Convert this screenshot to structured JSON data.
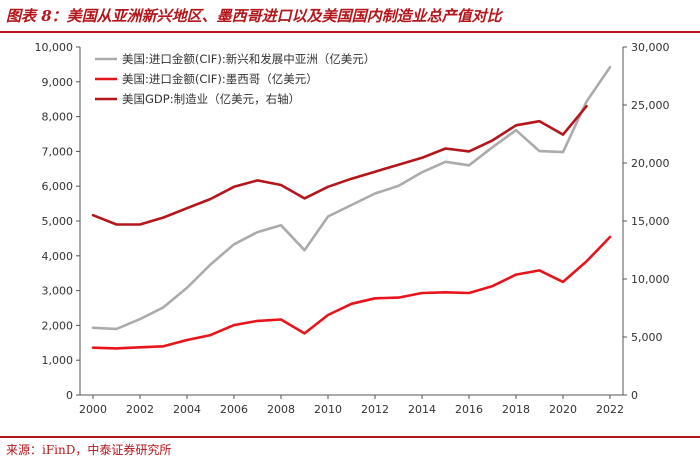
{
  "header": {
    "title": "图表 8：美国从亚洲新兴地区、墨西哥进口以及美国国内制造业总产值对比"
  },
  "footer": {
    "source": "来源：iFinD，中泰证券研究所"
  },
  "chart_data": {
    "type": "line",
    "title": "",
    "xlabel": "",
    "ylabel": "",
    "x": [
      2000,
      2001,
      2002,
      2003,
      2004,
      2005,
      2006,
      2007,
      2008,
      2009,
      2010,
      2011,
      2012,
      2013,
      2014,
      2015,
      2016,
      2017,
      2018,
      2019,
      2020,
      2021,
      2022
    ],
    "x_ticks": [
      "2000",
      "2002",
      "2004",
      "2006",
      "2008",
      "2010",
      "2012",
      "2014",
      "2016",
      "2018",
      "2020",
      "2022"
    ],
    "y_left": {
      "ylim": [
        0,
        10000
      ],
      "ticks": [
        "0",
        "1,000",
        "2,000",
        "3,000",
        "4,000",
        "5,000",
        "6,000",
        "7,000",
        "8,000",
        "9,000",
        "10,000"
      ]
    },
    "y_right": {
      "ylim": [
        0,
        30000
      ],
      "ticks": [
        "0",
        "5,000",
        "10,000",
        "15,000",
        "20,000",
        "25,000",
        "30,000"
      ]
    },
    "grid": false,
    "legend_position": "top-left",
    "series": [
      {
        "name": "美国:进口金额(CIF):新兴和发展中亚洲（亿美元）",
        "axis": "left",
        "color": "#ababab",
        "values": [
          1930,
          1900,
          2180,
          2520,
          3080,
          3750,
          4330,
          4680,
          4880,
          4160,
          5130,
          5460,
          5790,
          6010,
          6400,
          6700,
          6600,
          7120,
          7610,
          7010,
          6980,
          8430,
          9420
        ]
      },
      {
        "name": "美国:进口金额(CIF):墨西哥（亿美元）",
        "axis": "left",
        "color": "#e8141c",
        "values": [
          1360,
          1340,
          1370,
          1400,
          1580,
          1720,
          2010,
          2130,
          2170,
          1770,
          2300,
          2620,
          2780,
          2800,
          2930,
          2950,
          2930,
          3130,
          3460,
          3580,
          3250,
          3840,
          4540
        ]
      },
      {
        "name": "美国GDP:制造业（亿美元，右轴）",
        "axis": "right",
        "color": "#b4161b",
        "values": [
          15500,
          14700,
          14700,
          15300,
          16100,
          16900,
          17950,
          18500,
          18100,
          16950,
          17950,
          18650,
          19250,
          19850,
          20450,
          21250,
          21000,
          21950,
          23250,
          23600,
          22450,
          24900,
          null
        ]
      }
    ]
  }
}
